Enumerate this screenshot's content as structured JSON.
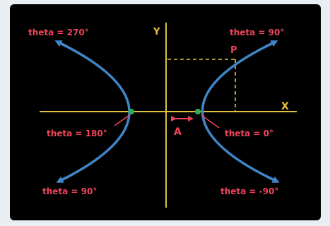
{
  "axes": {
    "x_label": "X",
    "y_label": "Y"
  },
  "labels": {
    "top_left": "theta = 270°",
    "top_right": "theta = 90°",
    "point": "P",
    "left_vertex": "theta = 180°",
    "right_vertex": "theta = 0°",
    "distance": "A",
    "bottom_left": "theta = 90°",
    "bottom_right": "theta = -90°"
  },
  "colors": {
    "background": "#000000",
    "axis": "#e2c23d",
    "curve": "#3f86c8",
    "label": "#f0445a",
    "vertex": "#2fae4e",
    "frame_outer": "#e9eef3"
  }
}
